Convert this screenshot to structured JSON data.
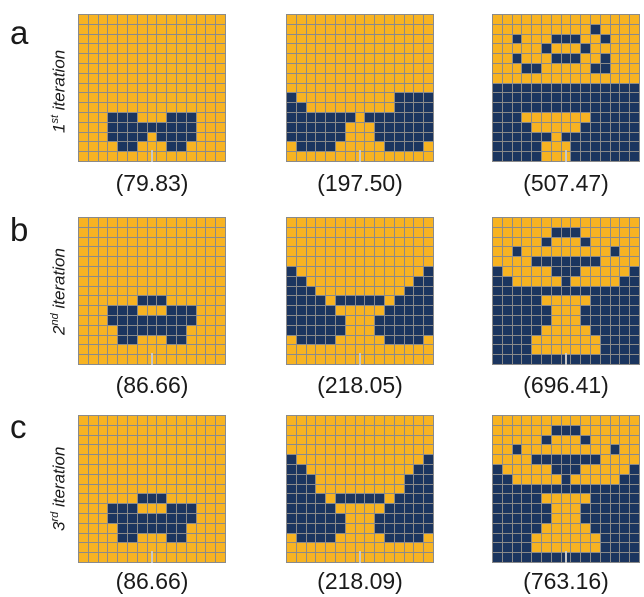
{
  "colors": {
    "orange": "#F7B322",
    "navy": "#1B355F"
  },
  "rows": [
    {
      "letter": "a",
      "label_num": "1",
      "label_sup": "st",
      "label_word": " iteration",
      "values": [
        "(79.83)",
        "(197.50)",
        "(507.47)"
      ]
    },
    {
      "letter": "b",
      "label_num": "2",
      "label_sup": "nd",
      "label_word": " iteration",
      "values": [
        "(86.66)",
        "(218.05)",
        "(696.41)"
      ]
    },
    {
      "letter": "c",
      "label_num": "3",
      "label_sup": "rd",
      "label_word": " iteration",
      "values": [
        "(86.66)",
        "(218.09)",
        "(763.16)"
      ]
    }
  ],
  "grids": [
    [
      [
        "...............",
        "...............",
        "...............",
        "...............",
        "...............",
        "...............",
        "...............",
        "...............",
        "...............",
        "...............",
        "...###...###...",
        "...#########...",
        "...####.####...",
        "....##...##....",
        "...............",
        "..............."
      ],
      [
        "...............",
        "...............",
        "...............",
        "...............",
        "...............",
        "...............",
        "...............",
        "...............",
        "#..........####",
        "##.........####",
        "#######.#######",
        "######...######",
        "######...######",
        ".####.....####.",
        "...............",
        "..............."
      ],
      [
        "...............",
        "..........#....",
        "..#...###..#...",
        ".....#...#.....",
        "..#...###..#...",
        "...##.....##...",
        "...............",
        "###############",
        "###############",
        "###############",
        "###.......#####",
        "####.....######",
        "######.########",
        "#####...#######",
        "#####...#######",
        "###############"
      ]
    ],
    [
      [
        "...............",
        "...............",
        "...............",
        "...............",
        "...............",
        "...............",
        "...............",
        "...............",
        "......###......",
        "...###...###...",
        "...#########...",
        "....#######....",
        "....##...##....",
        "...............",
        "...............",
        "..............."
      ],
      [
        "...............",
        "...............",
        "...............",
        "...............",
        "...............",
        "#.............#",
        "##...........##",
        "###.........###",
        "####.#####.####",
        "#####.....#####",
        "######...######",
        "######...######",
        ".####.....####.",
        "...............",
        "...............",
        "..............."
      ],
      [
        "...............",
        "......###......",
        ".....#...#.....",
        "..#.........#..",
        "....#######....",
        "#.....###.....#",
        "##.....#.....##",
        "###############",
        "#####.....#####",
        "######...######",
        "######...######",
        "#####.....#####",
        "####.......####",
        "####.......####",
        "###############",
        "###############"
      ]
    ],
    [
      [
        "...............",
        "...............",
        "...............",
        "...............",
        "...............",
        "...............",
        "...............",
        "...............",
        "......###......",
        "...###...###...",
        "...#########...",
        "....#######....",
        "....##...##....",
        "...............",
        "...............",
        "..............."
      ],
      [
        "...............",
        "...............",
        "...............",
        "...............",
        "#.............#",
        "##...........##",
        "###.........###",
        "###.........###",
        "####.#####.####",
        "#####.....#####",
        "######...######",
        "######...######",
        ".####.....####.",
        "...............",
        "...............",
        "..............."
      ],
      [
        "...............",
        "......###......",
        ".....#...#.....",
        "..#.........#..",
        "....#######....",
        "#.....###.....#",
        "##.....#.....##",
        "###############",
        "#####.....#####",
        "######...######",
        "######...######",
        "#####.....#####",
        "####.......####",
        "####.......####",
        "###############",
        "###############"
      ]
    ]
  ]
}
